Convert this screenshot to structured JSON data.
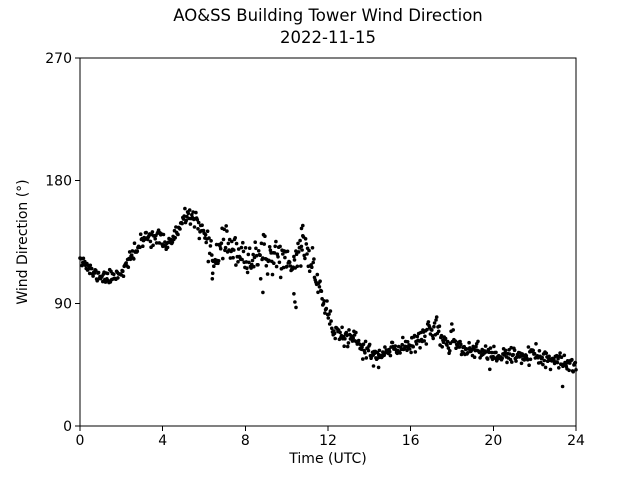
{
  "figure": {
    "background_color": "#ffffff",
    "text_color": "#000000"
  },
  "chart_data": {
    "type": "scatter",
    "title": "AO&SS Building Tower Wind Direction",
    "subtitle": "2022-11-15",
    "xlabel": "Time (UTC)",
    "ylabel": "Wind Direction (°)",
    "xlim": [
      0,
      24
    ],
    "ylim": [
      0,
      270
    ],
    "xticks": [
      0,
      4,
      8,
      12,
      16,
      20,
      24
    ],
    "yticks": [
      0,
      90,
      180,
      270
    ],
    "grid": false,
    "legend": "none",
    "marker_color": "#000000",
    "marker_radius": 1.8,
    "n_points": 720,
    "seed": 11,
    "trend": [
      [
        0,
        126
      ],
      [
        0.25,
        119
      ],
      [
        0.5,
        114
      ],
      [
        0.75,
        111
      ],
      [
        1,
        110
      ],
      [
        1.25,
        109
      ],
      [
        1.5,
        109
      ],
      [
        1.75,
        111
      ],
      [
        2,
        113
      ],
      [
        2.25,
        118
      ],
      [
        2.5,
        124
      ],
      [
        2.75,
        130
      ],
      [
        3,
        135
      ],
      [
        3.25,
        139
      ],
      [
        3.5,
        140
      ],
      [
        3.75,
        138
      ],
      [
        4,
        136
      ],
      [
        4.25,
        134
      ],
      [
        4.5,
        137
      ],
      [
        4.75,
        143
      ],
      [
        5,
        150
      ],
      [
        5.25,
        155
      ],
      [
        5.5,
        153
      ],
      [
        5.75,
        146
      ],
      [
        6,
        135
      ],
      [
        6.25,
        127
      ],
      [
        6.5,
        123
      ],
      [
        6.75,
        130
      ],
      [
        7,
        136
      ],
      [
        7.25,
        133
      ],
      [
        7.5,
        127
      ],
      [
        7.75,
        123
      ],
      [
        8,
        121
      ],
      [
        8.25,
        123
      ],
      [
        8.5,
        126
      ],
      [
        8.75,
        124
      ],
      [
        9,
        122
      ],
      [
        9.25,
        124
      ],
      [
        9.5,
        126
      ],
      [
        9.75,
        124
      ],
      [
        10,
        122
      ],
      [
        10.25,
        119
      ],
      [
        10.5,
        123
      ],
      [
        10.75,
        134
      ],
      [
        11,
        128
      ],
      [
        11.25,
        117
      ],
      [
        11.5,
        106
      ],
      [
        11.75,
        95
      ],
      [
        12,
        81
      ],
      [
        12.25,
        70
      ],
      [
        12.5,
        68
      ],
      [
        12.75,
        66
      ],
      [
        13,
        64
      ],
      [
        13.25,
        62
      ],
      [
        13.5,
        60
      ],
      [
        13.75,
        57
      ],
      [
        14,
        54
      ],
      [
        14.25,
        52
      ],
      [
        14.5,
        51
      ],
      [
        14.75,
        53
      ],
      [
        15,
        55
      ],
      [
        15.25,
        56
      ],
      [
        15.5,
        58
      ],
      [
        15.75,
        59
      ],
      [
        16,
        60
      ],
      [
        16.25,
        63
      ],
      [
        16.5,
        66
      ],
      [
        16.75,
        69
      ],
      [
        17,
        71
      ],
      [
        17.25,
        68
      ],
      [
        17.5,
        64
      ],
      [
        17.75,
        62
      ],
      [
        18,
        61
      ],
      [
        18.25,
        59
      ],
      [
        18.5,
        57
      ],
      [
        18.75,
        56
      ],
      [
        19,
        56
      ],
      [
        19.25,
        55
      ],
      [
        19.5,
        54
      ],
      [
        19.75,
        53
      ],
      [
        20,
        52
      ],
      [
        20.25,
        51.5
      ],
      [
        20.5,
        51
      ],
      [
        20.75,
        51
      ],
      [
        21,
        51
      ],
      [
        21.25,
        51.5
      ],
      [
        21.5,
        52
      ],
      [
        21.75,
        51.5
      ],
      [
        22,
        51
      ],
      [
        22.25,
        50
      ],
      [
        22.5,
        49
      ],
      [
        22.75,
        48
      ],
      [
        23,
        47
      ],
      [
        23.25,
        46
      ],
      [
        23.5,
        45
      ],
      [
        23.75,
        45.5
      ],
      [
        24,
        46
      ]
    ],
    "noise_sigma_segments": [
      [
        0,
        2.25,
        2.5
      ],
      [
        2.25,
        5.75,
        3
      ],
      [
        5.75,
        8,
        5.5
      ],
      [
        8,
        11.5,
        6
      ],
      [
        11.5,
        12.5,
        4
      ],
      [
        12.5,
        16,
        3.5
      ],
      [
        16,
        18,
        4
      ],
      [
        18,
        24,
        3.2
      ]
    ],
    "outliers": [
      [
        6.4,
        108
      ],
      [
        6.42,
        112
      ],
      [
        8.85,
        98
      ],
      [
        10.35,
        97
      ],
      [
        10.4,
        91
      ],
      [
        10.45,
        87
      ],
      [
        10.72,
        145
      ],
      [
        10.78,
        147
      ],
      [
        14.2,
        44
      ],
      [
        14.45,
        43
      ],
      [
        23.35,
        29
      ]
    ]
  },
  "geometry_labels": {
    "plot_frame": "axes-frame"
  }
}
